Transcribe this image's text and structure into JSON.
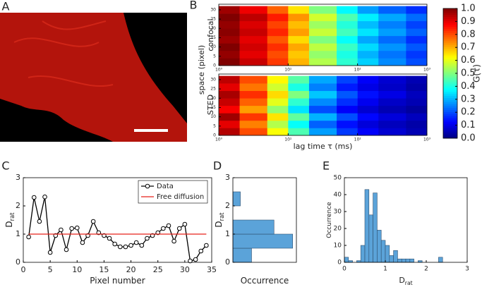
{
  "panels": [
    "A",
    "B",
    "C",
    "D",
    "E"
  ],
  "colorbar": {
    "label": "G(τ)",
    "colormap": "jet",
    "lim": [
      0,
      1
    ],
    "ticks": [
      {
        "value": 0,
        "label": "0.0"
      },
      0.1,
      0.2,
      0.3,
      0.4,
      0.5,
      0.6,
      0.7,
      0.8,
      0.9,
      {
        "value": 1,
        "label": "1.0"
      }
    ]
  },
  "chart_data": [
    {
      "type": "heatmap",
      "title": "confocal",
      "ylabel": "space (pixel)",
      "x_edges": [
        1,
        2,
        5,
        10,
        20,
        50,
        100,
        200,
        500,
        1000
      ],
      "y_edges": [
        0,
        4,
        8,
        12,
        16,
        20,
        24,
        28,
        32
      ],
      "z": [
        [
          1.0,
          0.93,
          0.82,
          0.7,
          0.55,
          0.42,
          0.33,
          0.26,
          0.2
        ],
        [
          0.98,
          0.9,
          0.8,
          0.68,
          0.52,
          0.4,
          0.3,
          0.24,
          0.18
        ],
        [
          1.0,
          0.92,
          0.83,
          0.71,
          0.56,
          0.43,
          0.34,
          0.27,
          0.21
        ],
        [
          0.97,
          0.9,
          0.79,
          0.66,
          0.5,
          0.38,
          0.29,
          0.23,
          0.17
        ],
        [
          0.99,
          0.93,
          0.84,
          0.72,
          0.57,
          0.44,
          0.35,
          0.28,
          0.22
        ],
        [
          0.98,
          0.91,
          0.81,
          0.69,
          0.53,
          0.41,
          0.31,
          0.25,
          0.19
        ],
        [
          1.0,
          0.94,
          0.85,
          0.73,
          0.58,
          0.45,
          0.36,
          0.29,
          0.23
        ],
        [
          0.97,
          0.89,
          0.78,
          0.65,
          0.5,
          0.37,
          0.28,
          0.22,
          0.17
        ]
      ],
      "xlim": [
        1,
        1000
      ],
      "xscale": "log",
      "xticks": [
        {
          "value": 1,
          "label": "10⁰"
        },
        {
          "value": 10,
          "label": "10¹"
        },
        {
          "value": 100,
          "label": "10²"
        },
        {
          "value": 1000,
          "label": "10³"
        }
      ],
      "ylim": [
        0,
        33
      ],
      "yticks": [
        0,
        5,
        10,
        15,
        20,
        25,
        30
      ]
    },
    {
      "type": "heatmap",
      "title": "STED",
      "xlabel": "lag time τ (ms)",
      "x_edges": [
        1,
        2,
        5,
        10,
        20,
        50,
        100,
        200,
        500,
        1000
      ],
      "y_edges": [
        0,
        4,
        8,
        12,
        16,
        20,
        24,
        28,
        32
      ],
      "z": [
        [
          0.95,
          0.8,
          0.62,
          0.45,
          0.28,
          0.18,
          0.12,
          0.08,
          0.05
        ],
        [
          0.9,
          0.75,
          0.55,
          0.38,
          0.22,
          0.14,
          0.09,
          0.06,
          0.04
        ],
        [
          0.97,
          0.82,
          0.65,
          0.47,
          0.3,
          0.2,
          0.13,
          0.09,
          0.06
        ],
        [
          0.88,
          0.72,
          0.52,
          0.35,
          0.2,
          0.12,
          0.08,
          0.05,
          0.03
        ],
        [
          0.93,
          0.78,
          0.6,
          0.42,
          0.26,
          0.17,
          0.11,
          0.07,
          0.05
        ],
        [
          0.96,
          0.83,
          0.66,
          0.5,
          0.32,
          0.21,
          0.14,
          0.1,
          0.06
        ],
        [
          0.9,
          0.76,
          0.58,
          0.4,
          0.25,
          0.15,
          0.1,
          0.07,
          0.04
        ],
        [
          0.94,
          0.8,
          0.63,
          0.46,
          0.29,
          0.19,
          0.12,
          0.08,
          0.05
        ]
      ],
      "xlim": [
        1,
        1000
      ],
      "xscale": "log",
      "xticks": [
        {
          "value": 1,
          "label": "10⁰"
        },
        {
          "value": 10,
          "label": "10¹"
        },
        {
          "value": 100,
          "label": "10²"
        },
        {
          "value": 1000,
          "label": "10³"
        }
      ],
      "ylim": [
        0,
        33
      ],
      "yticks": [
        0,
        5,
        10,
        15,
        20,
        25,
        30
      ]
    },
    {
      "type": "line",
      "xlabel": "Pixel number",
      "ylabel": "D",
      "ylabel_sub": "rat",
      "xlim": [
        0,
        35
      ],
      "xticks": [
        0,
        5,
        10,
        15,
        20,
        25,
        30,
        35
      ],
      "ylim": [
        0,
        3
      ],
      "yticks": [
        0,
        1,
        2,
        3
      ],
      "legend": "upper right",
      "series": [
        {
          "name": "Data",
          "color": "#000000",
          "marker": "o",
          "x": [
            1,
            2,
            3,
            4,
            5,
            6,
            7,
            8,
            9,
            10,
            11,
            12,
            13,
            14,
            15,
            16,
            17,
            18,
            19,
            20,
            21,
            22,
            23,
            24,
            25,
            26,
            27,
            28,
            29,
            30,
            31,
            32,
            33,
            34
          ],
          "values": [
            0.9,
            2.3,
            1.45,
            2.32,
            0.35,
            0.95,
            1.15,
            0.45,
            1.2,
            1.22,
            0.7,
            0.95,
            1.45,
            1.05,
            0.95,
            0.85,
            0.65,
            0.55,
            0.55,
            0.6,
            0.7,
            0.6,
            0.85,
            0.95,
            1.05,
            1.2,
            1.3,
            0.75,
            1.2,
            1.35,
            0.05,
            0.1,
            0.4,
            0.6
          ]
        },
        {
          "name": "Free diffusion",
          "color": "#e8231b",
          "x": [
            1,
            34
          ],
          "values": [
            1,
            1
          ]
        }
      ]
    },
    {
      "type": "histogram",
      "orientation": "horizontal",
      "xlabel": "Occurrence",
      "ylabel": "D",
      "ylabel_sub": "rat",
      "bins": [
        0,
        0.5,
        1,
        1.5,
        2,
        2.5
      ],
      "counts": [
        5,
        16,
        11,
        0,
        2
      ],
      "color": "#5ba3d9",
      "xlim": [
        0,
        17
      ],
      "ylim": [
        0,
        3
      ],
      "yticks": [
        0,
        1,
        2,
        3
      ]
    },
    {
      "type": "histogram",
      "xlabel": "D",
      "xlabel_sub": "rat",
      "ylabel": "Occurrence",
      "bins": [
        0,
        0.1,
        0.2,
        0.3,
        0.4,
        0.5,
        0.6,
        0.7,
        0.8,
        0.9,
        1.0,
        1.1,
        1.2,
        1.3,
        1.4,
        1.5,
        1.6,
        1.7,
        1.8,
        1.9,
        2.0,
        2.1,
        2.2,
        2.3,
        2.4
      ],
      "counts": [
        3,
        1,
        0,
        1,
        10,
        43,
        28,
        41,
        19,
        13,
        10,
        4,
        7,
        2,
        2,
        2,
        2,
        0,
        1,
        0,
        0,
        0,
        0,
        3
      ],
      "color": "#5ba3d9",
      "xlim": [
        0,
        3
      ],
      "xticks": [
        0,
        1,
        2,
        3
      ],
      "ylim": [
        0,
        50
      ],
      "yticks": [
        0,
        10,
        20,
        30,
        40,
        50
      ]
    }
  ]
}
